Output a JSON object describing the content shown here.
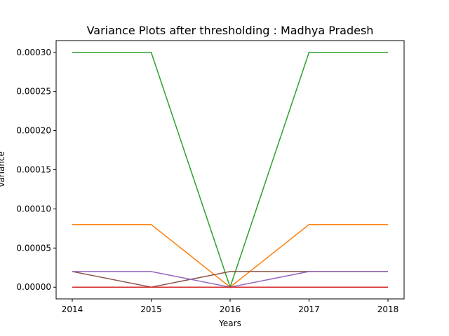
{
  "chart_data": {
    "type": "line",
    "title": "Variance Plots after thresholding : Madhya Pradesh",
    "xlabel": "Years",
    "ylabel": "Variance",
    "x": [
      "2014",
      "2015",
      "2016",
      "2017",
      "2018"
    ],
    "ylim": [
      -1.5e-05,
      0.000315
    ],
    "yticks": [
      "0.00000",
      "0.00005",
      "0.00010",
      "0.00015",
      "0.00020",
      "0.00025",
      "0.00030"
    ],
    "grid": false,
    "series": [
      {
        "color": "#1f77b4",
        "values": [
          0,
          0,
          0,
          0,
          0
        ]
      },
      {
        "color": "#ff7f0e",
        "values": [
          8e-05,
          8e-05,
          0,
          8e-05,
          8e-05
        ]
      },
      {
        "color": "#2ca02c",
        "values": [
          0.0003,
          0.0003,
          0,
          0.0003,
          0.0003
        ]
      },
      {
        "color": "#8c564b",
        "values": [
          2e-05,
          0,
          2e-05,
          2e-05,
          2e-05
        ]
      },
      {
        "color": "#e377c2",
        "values": [
          0,
          0,
          0,
          0,
          0
        ]
      },
      {
        "color": "#7f7f7f",
        "values": [
          0,
          0,
          0,
          0,
          0
        ]
      },
      {
        "color": "#bcbd22",
        "values": [
          0,
          0,
          0,
          0,
          0
        ]
      },
      {
        "color": "#17becf",
        "values": [
          0,
          0,
          0,
          0,
          0
        ]
      },
      {
        "color": "#9467bd",
        "values": [
          2e-05,
          2e-05,
          0,
          2e-05,
          2e-05
        ]
      },
      {
        "color": "#d62728",
        "values": [
          0,
          0,
          0,
          0,
          0
        ]
      }
    ]
  }
}
